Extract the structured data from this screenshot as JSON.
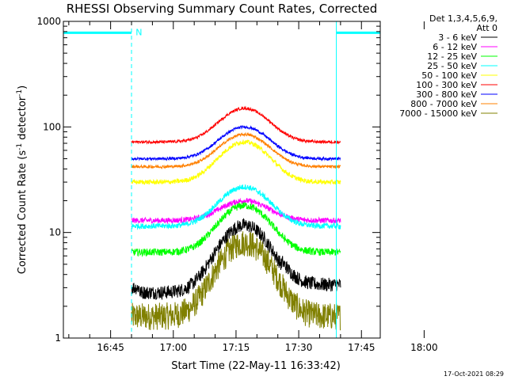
{
  "chart_data": {
    "type": "line",
    "title": "RHESSI Observing Summary Count Rates, Corrected",
    "xlabel": "Start Time (22-May-11 16:33:42)",
    "ylabel": "Corrected Count Rate (s⁻¹ detector⁻¹)",
    "ylabel_parts": {
      "main": "Corrected Count Rate (s",
      "exp1": "-1",
      "mid": " detector",
      "exp2": "-1",
      "end": ")"
    },
    "y_scale": "log",
    "ylim": [
      1,
      1000
    ],
    "xlim_minutes": [
      33.7,
      109.5
    ],
    "y_ticks": [
      {
        "value": 1,
        "label": "1"
      },
      {
        "value": 10,
        "label": "10"
      },
      {
        "value": 100,
        "label": "100"
      },
      {
        "value": 1000,
        "label": "1000"
      }
    ],
    "x_ticks": [
      {
        "value": 45,
        "label": "16:45"
      },
      {
        "value": 60,
        "label": "17:00"
      },
      {
        "value": 75,
        "label": "17:15"
      },
      {
        "value": 90,
        "label": "17:30"
      },
      {
        "value": 105,
        "label": "17:45"
      },
      {
        "value": 120,
        "label": "18:00"
      }
    ],
    "time_origin": "16:00",
    "legend_header": [
      "Det 1,3,4,5,6,9,",
      "Att 0"
    ],
    "legend_placement": "right",
    "data_start": 50,
    "data_end": 100,
    "series": [
      {
        "name": "3 - 6 keV",
        "color": "#000000",
        "base": 3.0,
        "peak": 12,
        "noise": 0.15,
        "steps": [
          [
            52,
            2.7
          ],
          [
            86,
            3.2
          ]
        ]
      },
      {
        "name": "6 - 12 keV",
        "color": "#ff00ff",
        "base": 13,
        "peak": 20,
        "noise": 0.06
      },
      {
        "name": "12 - 25 keV",
        "color": "#00ff00",
        "base": 6.5,
        "peak": 18,
        "noise": 0.08
      },
      {
        "name": "25 - 50 keV",
        "color": "#00ffff",
        "base": 11.5,
        "peak": 27,
        "noise": 0.06
      },
      {
        "name": "50 - 100 keV",
        "color": "#ffff00",
        "base": 30,
        "peak": 72,
        "noise": 0.05
      },
      {
        "name": "100 - 300 keV",
        "color": "#ff0000",
        "base": 72,
        "peak": 150,
        "noise": 0.03
      },
      {
        "name": "300 - 800 keV",
        "color": "#0000ff",
        "base": 50,
        "peak": 100,
        "noise": 0.03
      },
      {
        "name": "800 - 7000 keV",
        "color": "#ff8000",
        "base": 42,
        "peak": 85,
        "noise": 0.03
      },
      {
        "name": "7000 - 15000 keV",
        "color": "#808000",
        "base": 1.6,
        "peak": 8,
        "noise": 0.3
      }
    ],
    "attenuator_segments": [
      {
        "start": 33.7,
        "end": 50,
        "level": 780
      },
      {
        "start": 99,
        "end": 109.5,
        "level": 780
      }
    ],
    "attenuator_vlines": [
      {
        "t": 33.7,
        "style": "solid"
      },
      {
        "t": 50,
        "style": "dashed"
      },
      {
        "t": 99,
        "style": "solid"
      },
      {
        "t": 109.5,
        "style": "dashed"
      }
    ],
    "flag_label": "N",
    "flag_label_t": 51,
    "overlay_color": "#00ffff",
    "grid": false
  },
  "timestamp": "17-Oct-2021 08:29"
}
